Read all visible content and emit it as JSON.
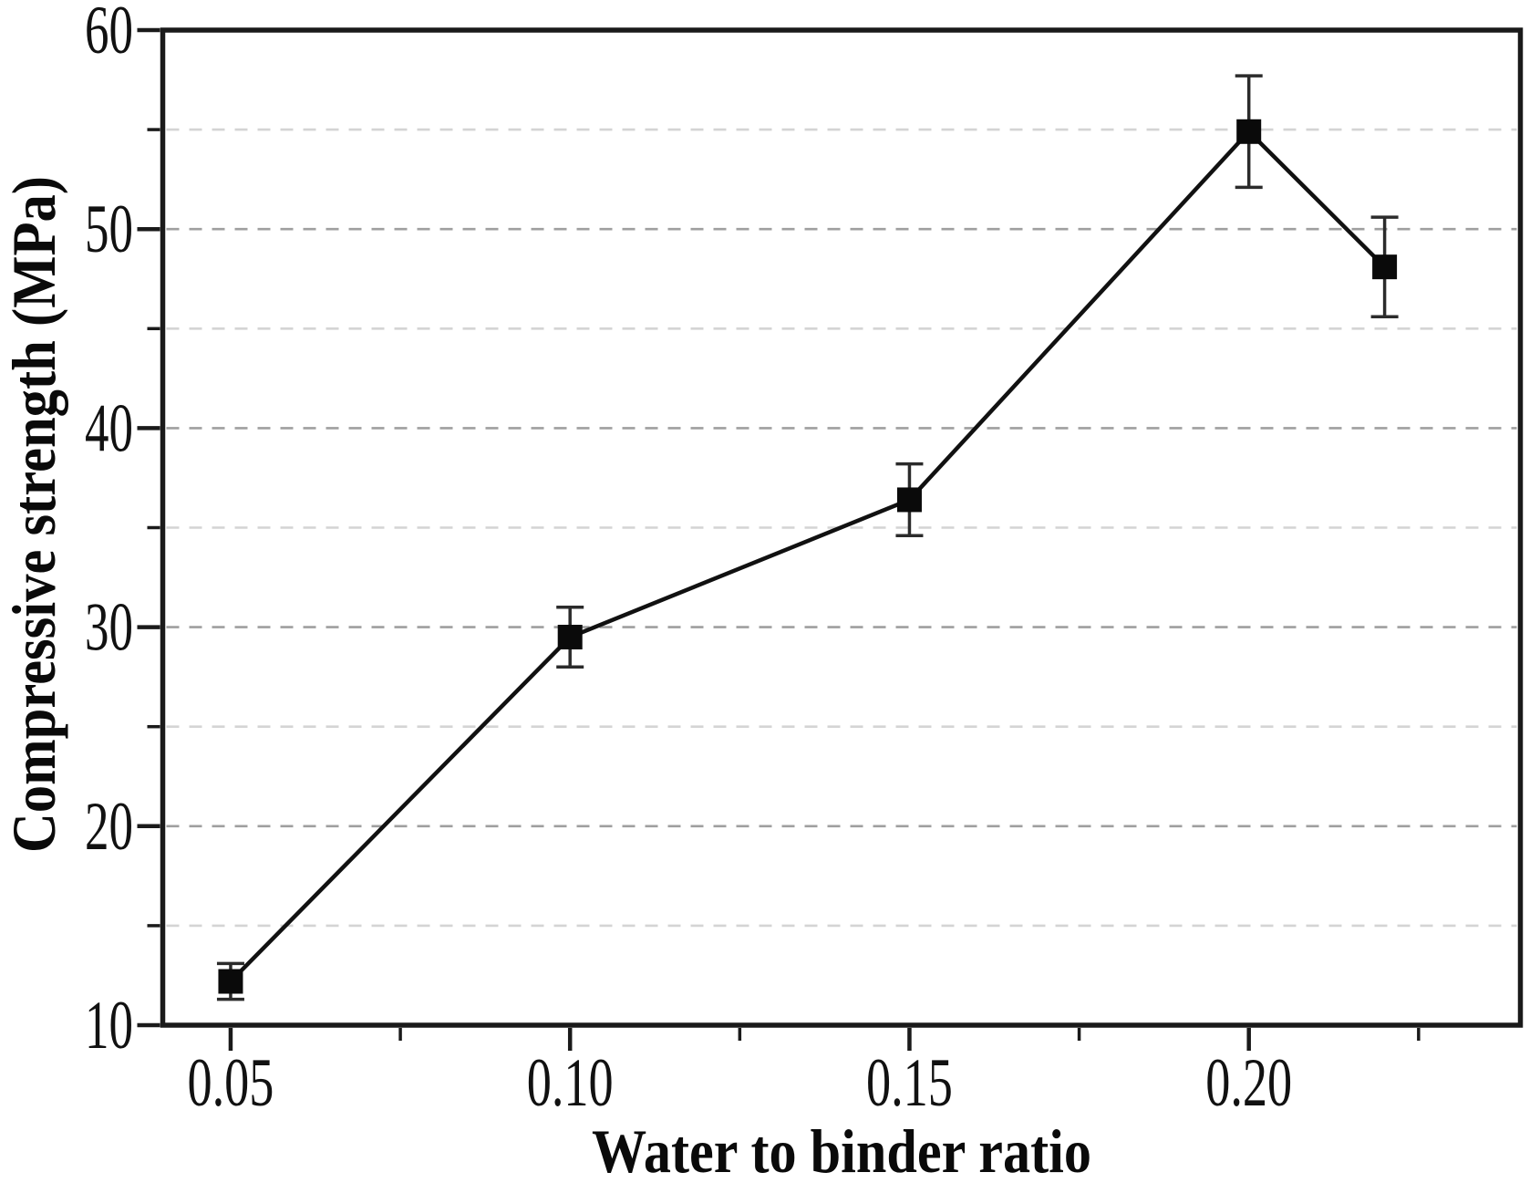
{
  "figure": {
    "background": "#ffffff"
  },
  "chart_data": {
    "type": "line",
    "title": "",
    "xlabel": "Water to binder ratio",
    "ylabel": "Compressive strength (MPa)",
    "series": [
      {
        "name": "compressive-strength",
        "x": [
          0.05,
          0.1,
          0.15,
          0.2,
          0.22
        ],
        "y": [
          12.2,
          29.5,
          36.4,
          54.9,
          48.1
        ],
        "y_err": [
          0.9,
          1.5,
          1.8,
          2.8,
          2.5
        ],
        "marker": "filled-square",
        "marker_color": "#0a0a0a",
        "line_color": "#111111",
        "error_bar_color": "#2b2b2b"
      }
    ],
    "xlim": [
      0.04,
      0.24
    ],
    "ylim": [
      10,
      60
    ],
    "x_major_ticks": [
      0.05,
      0.1,
      0.15,
      0.2
    ],
    "x_major_tick_labels": [
      "0.05",
      "0.10",
      "0.15",
      "0.20"
    ],
    "x_minor_ticks": [
      0.075,
      0.125,
      0.175,
      0.225
    ],
    "y_major_ticks": [
      10,
      20,
      30,
      40,
      50,
      60
    ],
    "y_major_tick_labels": [
      "10",
      "20",
      "30",
      "40",
      "50",
      "60"
    ],
    "y_minor_ticks": [
      15,
      25,
      35,
      45,
      55
    ],
    "grid": {
      "horizontal_dashed_values": [
        15,
        20,
        25,
        30,
        35,
        40,
        45,
        50,
        55
      ],
      "major_color": "#9f9f9f",
      "minor_color": "#d4d4d4",
      "style": "dashed"
    },
    "axis_color": "#1a1a1a",
    "legend": "none"
  }
}
